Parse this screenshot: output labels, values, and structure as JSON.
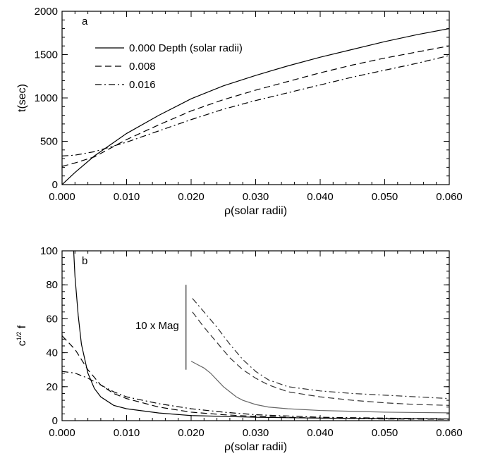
{
  "chart_data": [
    {
      "type": "line",
      "panel_label": "a",
      "xlabel": "ρ(solar radii)",
      "ylabel": "t(sec)",
      "xlim": [
        0,
        0.06
      ],
      "ylim": [
        0,
        2000
      ],
      "xticks": [
        "0.000",
        "0.010",
        "0.020",
        "0.030",
        "0.040",
        "0.050",
        "0.060"
      ],
      "xtick_values": [
        0,
        0.01,
        0.02,
        0.03,
        0.04,
        0.05,
        0.06
      ],
      "yticks": [
        "0",
        "500",
        "1000",
        "1500",
        "2000"
      ],
      "ytick_values": [
        0,
        500,
        1000,
        1500,
        2000
      ],
      "legend_title": "Depth (solar radii)",
      "legend_position": "top-left",
      "series": [
        {
          "name": "0.000",
          "color": "#000000",
          "dash": "solid",
          "x": [
            0,
            0.002,
            0.005,
            0.01,
            0.015,
            0.02,
            0.025,
            0.03,
            0.035,
            0.04,
            0.045,
            0.05,
            0.055,
            0.06
          ],
          "y": [
            0,
            140,
            330,
            590,
            800,
            990,
            1140,
            1260,
            1370,
            1470,
            1560,
            1650,
            1730,
            1800
          ]
        },
        {
          "name": "0.008",
          "color": "#000000",
          "dash": "dashed",
          "x": [
            0,
            0.002,
            0.005,
            0.01,
            0.015,
            0.02,
            0.025,
            0.03,
            0.035,
            0.04,
            0.045,
            0.05,
            0.055,
            0.06
          ],
          "y": [
            210,
            250,
            320,
            520,
            690,
            850,
            980,
            1090,
            1190,
            1290,
            1380,
            1460,
            1530,
            1600
          ]
        },
        {
          "name": "0.016",
          "color": "#000000",
          "dash": "dashdot",
          "x": [
            0,
            0.002,
            0.005,
            0.01,
            0.015,
            0.02,
            0.025,
            0.03,
            0.035,
            0.04,
            0.045,
            0.05,
            0.055,
            0.06
          ],
          "y": [
            330,
            340,
            380,
            490,
            620,
            750,
            870,
            970,
            1060,
            1150,
            1240,
            1320,
            1400,
            1490
          ]
        }
      ]
    },
    {
      "type": "line",
      "panel_label": "b",
      "xlabel": "ρ(solar radii)",
      "ylabel": "c",
      "ylabel_sup": "1/2",
      "ylabel_suffix": " f",
      "xlim": [
        0,
        0.06
      ],
      "ylim": [
        0,
        100
      ],
      "xticks": [
        "0.000",
        "0.010",
        "0.020",
        "0.030",
        "0.040",
        "0.050",
        "0.060"
      ],
      "xtick_values": [
        0,
        0.01,
        0.02,
        0.03,
        0.04,
        0.05,
        0.06
      ],
      "yticks": [
        "0",
        "20",
        "40",
        "60",
        "80",
        "100"
      ],
      "ytick_values": [
        0,
        20,
        40,
        60,
        80,
        100
      ],
      "annotation": "10 x Mag",
      "scale_bar": {
        "x": 0.0192,
        "y_from": 30,
        "y_to": 80
      },
      "series": [
        {
          "name": "0.000",
          "color": "#000000",
          "dash": "solid",
          "x": [
            0.0018,
            0.002,
            0.0025,
            0.003,
            0.004,
            0.005,
            0.006,
            0.008,
            0.01,
            0.015,
            0.02,
            0.03,
            0.04,
            0.05,
            0.06
          ],
          "y": [
            100,
            85,
            62,
            45,
            28,
            19,
            14,
            9,
            7,
            4.5,
            3,
            2,
            1.5,
            1.2,
            1
          ]
        },
        {
          "name": "0.008",
          "color": "#000000",
          "dash": "dashed",
          "x": [
            0,
            0.002,
            0.004,
            0.006,
            0.008,
            0.01,
            0.015,
            0.02,
            0.025,
            0.03,
            0.04,
            0.05,
            0.06
          ],
          "y": [
            50,
            42,
            30,
            21,
            16,
            13,
            8,
            5,
            3.5,
            2.5,
            1.5,
            1,
            0.8
          ]
        },
        {
          "name": "0.016",
          "color": "#000000",
          "dash": "dashdot",
          "x": [
            0,
            0.002,
            0.004,
            0.006,
            0.008,
            0.01,
            0.015,
            0.02,
            0.025,
            0.03,
            0.04,
            0.05,
            0.06
          ],
          "y": [
            29,
            28,
            25,
            21,
            17,
            14,
            10,
            7,
            5,
            3.5,
            2,
            1.5,
            1
          ]
        },
        {
          "name": "0.000 (10 x Mag)",
          "color": "#666666",
          "dash": "solid",
          "x": [
            0.02,
            0.021,
            0.022,
            0.023,
            0.024,
            0.025,
            0.026,
            0.027,
            0.028,
            0.03,
            0.032,
            0.035,
            0.04,
            0.045,
            0.05,
            0.055,
            0.06
          ],
          "y": [
            35,
            33,
            31,
            28,
            24,
            20,
            17,
            14,
            12,
            9.5,
            8,
            7,
            6,
            5.5,
            5,
            4.8,
            4.6
          ]
        },
        {
          "name": "0.008 (10 x Mag)",
          "color": "#333333",
          "dash": "dashed",
          "x": [
            0.0202,
            0.022,
            0.024,
            0.026,
            0.028,
            0.03,
            0.032,
            0.035,
            0.04,
            0.045,
            0.05,
            0.055,
            0.06
          ],
          "y": [
            64,
            55,
            46,
            37,
            30,
            25,
            21,
            17,
            14,
            12,
            10.5,
            9.5,
            9
          ]
        },
        {
          "name": "0.016 (10 x Mag)",
          "color": "#333333",
          "dash": "dashdot",
          "x": [
            0.0202,
            0.022,
            0.024,
            0.026,
            0.028,
            0.03,
            0.032,
            0.035,
            0.04,
            0.045,
            0.05,
            0.055,
            0.06
          ],
          "y": [
            72,
            64,
            55,
            45,
            36,
            29,
            24,
            20,
            17.5,
            16,
            15,
            14,
            13
          ]
        }
      ]
    }
  ]
}
